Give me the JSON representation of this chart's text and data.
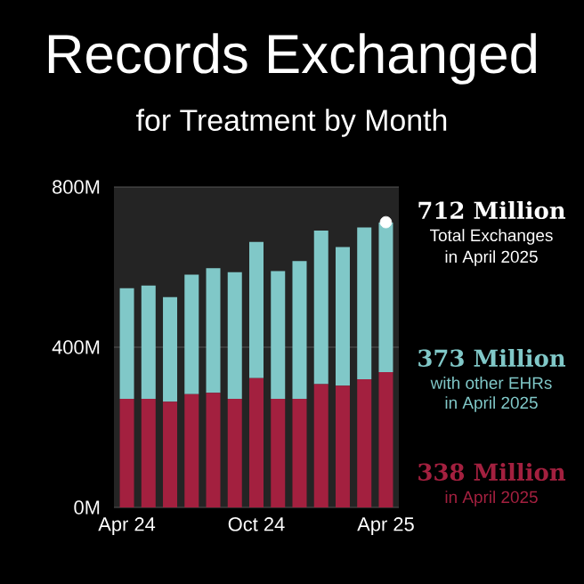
{
  "chart_data": {
    "type": "bar",
    "title": "Records Exchanged",
    "subtitle": "for Treatment by Month",
    "categories": [
      "Apr 24",
      null,
      null,
      null,
      null,
      null,
      "Oct 24",
      null,
      null,
      null,
      null,
      null,
      "Apr 25"
    ],
    "stacked": true,
    "series": [
      {
        "color": "#a3203f",
        "values": [
          271,
          271,
          264,
          283,
          286,
          271,
          323,
          271,
          271,
          308,
          304,
          320,
          338
        ]
      },
      {
        "color": "#80c8c8",
        "values": [
          276,
          283,
          261,
          298,
          311,
          316,
          340,
          319,
          344,
          383,
          346,
          379,
          373
        ]
      },
      {
        "type": "scatter",
        "color": "#ffffff",
        "x": [
          "Apr 25"
        ],
        "values": [
          712
        ],
        "marker": "circle"
      }
    ],
    "ylim": [
      0,
      800
    ],
    "yticks": [
      {
        "value": 0,
        "label": "0M"
      },
      {
        "value": 400,
        "label": "400M"
      },
      {
        "value": 800,
        "label": "800M"
      }
    ],
    "grid": "y",
    "annotations": [
      "712 Million",
      "Total Exchanges",
      "in April 2025",
      "373 Million",
      "with other EHRs",
      "in April 2025",
      "338 Million",
      "in April 2025"
    ]
  }
}
